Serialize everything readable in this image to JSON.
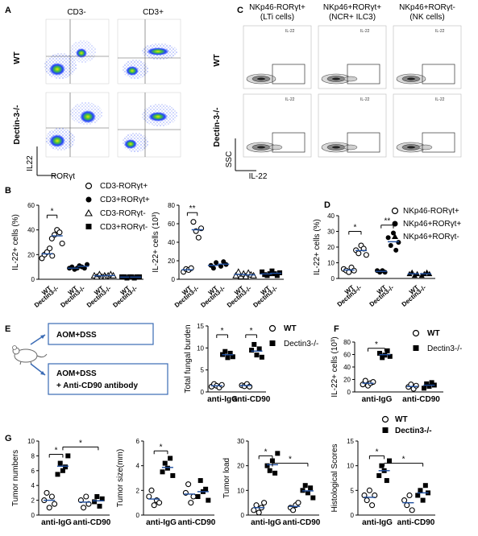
{
  "panel_letters": [
    "A",
    "B",
    "C",
    "D",
    "E",
    "F",
    "G"
  ],
  "panel_a": {
    "col_headers": [
      "CD3-",
      "CD3+"
    ],
    "row_labels": [
      "WT",
      "Dectin-3-/-"
    ],
    "ylabel": "IL22",
    "xlabel": "RORγt"
  },
  "panel_c": {
    "col_headers": [
      [
        "NKp46-RORγt+",
        "(LTi cells)"
      ],
      [
        "NKp46+RORγt+",
        "(NCR+ ILC3)"
      ],
      [
        "NKp46+RORγt-",
        "(NK cells)"
      ]
    ],
    "row_labels": [
      "WT",
      "Dectin-3-/-"
    ],
    "ylabel": "SSC",
    "xlabel": "IL-22"
  },
  "panel_b": {
    "legend": [
      "CD3-RORγt+",
      "CD3+RORγt+",
      "CD3-RORγt-",
      "CD3+RORγt-"
    ],
    "left_ylabel": "IL-22+ cells (%)",
    "right_ylabel": "IL-22+ cells (10³)",
    "groups": [
      "WT",
      "Dectin3-/-"
    ],
    "sig": [
      "*",
      "**"
    ]
  },
  "panel_d": {
    "legend": [
      "NKp46-RORγt+",
      "NKp46+RORγt+",
      "NKp46+RORγt-"
    ],
    "ylabel": "IL-22+ cells (%)",
    "groups": [
      "WT",
      "Dectin3-/-"
    ],
    "sig": [
      "*",
      "**"
    ]
  },
  "panel_e": {
    "box1": "AOM+DSS",
    "box2_line1": "AOM+DSS",
    "box2_line2": "+ Anti-CD90 antibody",
    "ylabel": "Total fungal burden",
    "legend": [
      "WT",
      "Dectin3-/-"
    ],
    "xgroups": [
      "anti-IgG",
      "anti-CD90"
    ],
    "sig": [
      "*",
      "*"
    ]
  },
  "panel_f": {
    "ylabel": "IL-22+ cells (10³)",
    "legend": [
      "WT",
      "Dectin3-/-"
    ],
    "xgroups": [
      "anti-IgG",
      "anti-CD90"
    ],
    "sig": [
      "*"
    ]
  },
  "panel_g": {
    "ylabels": [
      "Tumor numbers",
      "Tumor size(mm)",
      "Tumor load",
      "Histological Scores"
    ],
    "legend": [
      "WT",
      "Dectin3-/-"
    ],
    "xgroups": [
      "anti-IgG",
      "anti-CD90"
    ],
    "sig": [
      "*",
      "*"
    ]
  },
  "chart_data": [
    {
      "id": "B-left",
      "type": "scatter",
      "ylim": [
        0,
        60
      ],
      "yticks": [
        0,
        20,
        40,
        60
      ],
      "ylabel": "IL-22+ cells (%)",
      "series": [
        {
          "name": "CD3-RORγt+",
          "wt": [
            17,
            20,
            22,
            25,
            19
          ],
          "ko": [
            33,
            36,
            40,
            38,
            29
          ]
        },
        {
          "name": "CD3+RORγt+",
          "wt": [
            9,
            10,
            8,
            9
          ],
          "ko": [
            11,
            10,
            9,
            12
          ]
        },
        {
          "name": "CD3-RORγt-",
          "wt": [
            3,
            2,
            4,
            2,
            3
          ],
          "ko": [
            2,
            3,
            4,
            3
          ]
        },
        {
          "name": "CD3+RORγt-",
          "wt": [
            2,
            2,
            1,
            2
          ],
          "ko": [
            2,
            1,
            2,
            2
          ]
        }
      ]
    },
    {
      "id": "B-right",
      "type": "scatter",
      "ylim": [
        0,
        80
      ],
      "yticks": [
        0,
        20,
        40,
        60,
        80
      ],
      "ylabel": "IL-22+ cells (10³)",
      "series": [
        {
          "name": "CD3-RORγt+",
          "wt": [
            8,
            11,
            10,
            12
          ],
          "ko": [
            62,
            52,
            45,
            55
          ]
        },
        {
          "name": "CD3+RORγt+",
          "wt": [
            15,
            12,
            18
          ],
          "ko": [
            14,
            19,
            16
          ]
        },
        {
          "name": "CD3-RORγt-",
          "wt": [
            4,
            8,
            3,
            6
          ],
          "ko": [
            3,
            7,
            5,
            4
          ]
        },
        {
          "name": "CD3+RORγt-",
          "wt": [
            8,
            5,
            4,
            6
          ],
          "ko": [
            9,
            6,
            4,
            7
          ]
        }
      ]
    },
    {
      "id": "D",
      "type": "scatter",
      "ylim": [
        0,
        40
      ],
      "yticks": [
        0,
        10,
        20,
        30,
        40
      ],
      "ylabel": "IL-22+ cells (%)",
      "series": [
        {
          "name": "NKp46-RORγt+",
          "wt": [
            6,
            5,
            4,
            7,
            5
          ],
          "ko": [
            18,
            16,
            21,
            19,
            15
          ]
        },
        {
          "name": "NKp46+RORγt+",
          "wt": [
            5,
            4,
            5,
            4
          ],
          "ko": [
            26,
            21,
            29,
            18,
            23
          ]
        },
        {
          "name": "NKp46+RORγt-",
          "wt": [
            3,
            4,
            2,
            3
          ],
          "ko": [
            2,
            3,
            4,
            3
          ]
        }
      ]
    },
    {
      "id": "E",
      "type": "scatter",
      "ylim": [
        0,
        15
      ],
      "yticks": [
        0,
        5,
        10,
        15
      ],
      "ylabel": "Total fungal burden",
      "groups": [
        {
          "x": "anti-IgG",
          "wt": [
            1.2,
            1.8,
            1.4,
            1.0,
            1.6
          ],
          "ko": [
            8.5,
            9.2,
            7.8,
            8.8,
            8.0
          ]
        },
        {
          "x": "anti-CD90",
          "wt": [
            1.5,
            1.3,
            1.8,
            1.2
          ],
          "ko": [
            9.5,
            10.8,
            8.4,
            9.8,
            7.9
          ]
        }
      ]
    },
    {
      "id": "F",
      "type": "scatter",
      "ylim": [
        0,
        80
      ],
      "yticks": [
        0,
        20,
        40,
        60,
        80
      ],
      "ylabel": "IL-22+ cells (10³)",
      "groups": [
        {
          "x": "anti-IgG",
          "wt": [
            12,
            18,
            10,
            14,
            16
          ],
          "ko": [
            62,
            55,
            59,
            66,
            57
          ]
        },
        {
          "x": "anti-CD90",
          "wt": [
            8,
            12,
            5,
            10
          ],
          "ko": [
            6,
            13,
            9,
            15,
            11
          ]
        }
      ]
    },
    {
      "id": "G1",
      "type": "scatter",
      "ylim": [
        0,
        10
      ],
      "yticks": [
        0,
        2,
        4,
        6,
        8,
        10
      ],
      "ylabel": "Tumor numbers",
      "groups": [
        {
          "x": "anti-IgG",
          "wt": [
            2,
            3,
            1,
            2.5,
            1.5
          ],
          "ko": [
            5.5,
            7,
            6,
            6.5,
            8
          ]
        },
        {
          "x": "anti-CD90",
          "wt": [
            2,
            1,
            2.5,
            1.5
          ],
          "ko": [
            1.8,
            2.5,
            1.2,
            2.2
          ]
        }
      ]
    },
    {
      "id": "G2",
      "type": "scatter",
      "ylim": [
        0,
        6
      ],
      "yticks": [
        0,
        2,
        4,
        6
      ],
      "ylabel": "Tumor size(mm)",
      "groups": [
        {
          "x": "anti-IgG",
          "wt": [
            1.5,
            2,
            0.8,
            1.2,
            1.0
          ],
          "ko": [
            3.5,
            4.2,
            3.8,
            4.6,
            3.2
          ]
        },
        {
          "x": "anti-CD90",
          "wt": [
            1.8,
            2.5,
            1.0,
            1.5
          ],
          "ko": [
            1.5,
            2.8,
            1.9,
            2.1,
            1.2
          ]
        }
      ]
    },
    {
      "id": "G3",
      "type": "scatter",
      "ylim": [
        0,
        30
      ],
      "yticks": [
        0,
        10,
        20,
        30
      ],
      "ylabel": "Tumor load",
      "groups": [
        {
          "x": "anti-IgG",
          "wt": [
            2,
            4,
            1,
            3,
            5
          ],
          "ko": [
            20,
            18,
            22,
            17,
            25
          ]
        },
        {
          "x": "anti-CD90",
          "wt": [
            3,
            2,
            4,
            5
          ],
          "ko": [
            10,
            12,
            9,
            11,
            7
          ]
        }
      ]
    },
    {
      "id": "G4",
      "type": "scatter",
      "ylim": [
        0,
        15
      ],
      "yticks": [
        0,
        5,
        10,
        15
      ],
      "ylabel": "Histological Scores",
      "groups": [
        {
          "x": "anti-IgG",
          "wt": [
            4,
            3,
            5,
            2,
            4
          ],
          "ko": [
            8,
            10,
            9,
            7,
            11
          ]
        },
        {
          "x": "anti-CD90",
          "wt": [
            3,
            2,
            4,
            1
          ],
          "ko": [
            4,
            5,
            3,
            6,
            4.5
          ]
        }
      ]
    }
  ]
}
